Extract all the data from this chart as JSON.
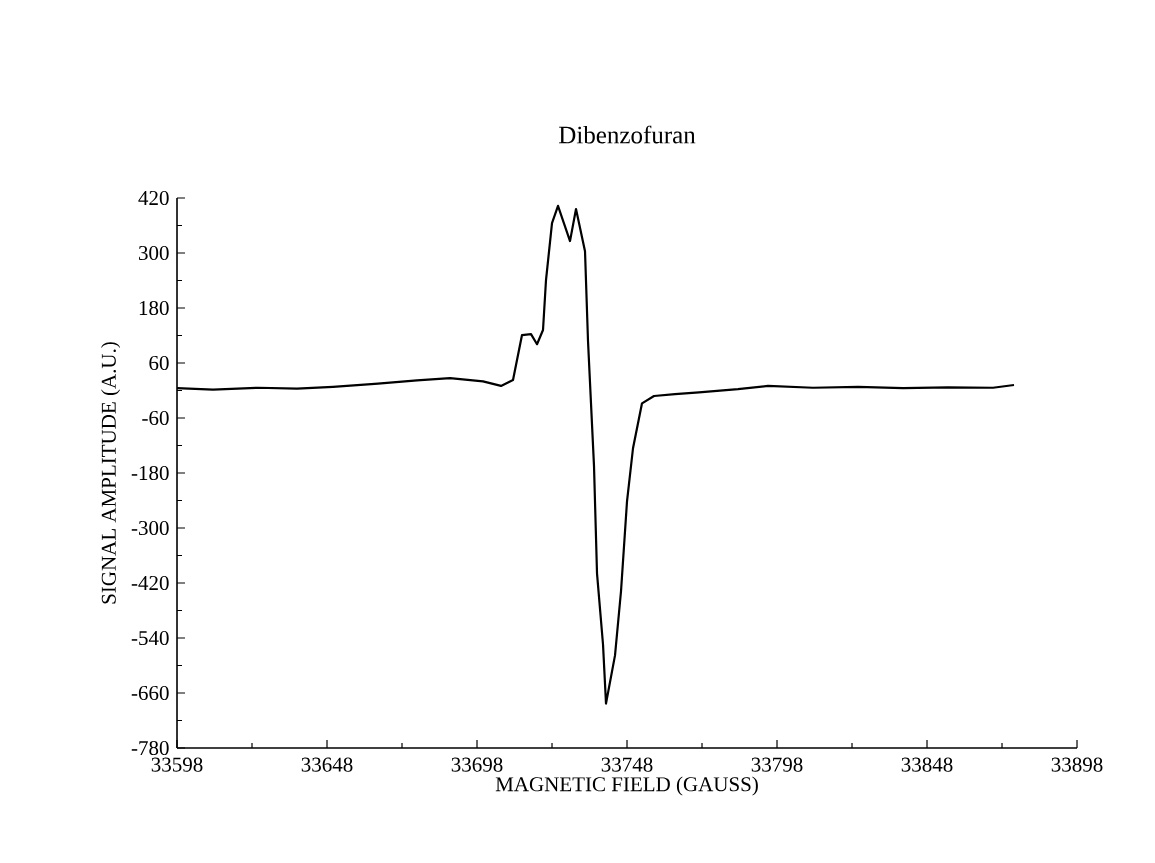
{
  "chart_data": {
    "type": "line",
    "title": "Dibenzofuran",
    "xlabel": "MAGNETIC FIELD (GAUSS)",
    "ylabel": "SIGNAL AMPLITUDE (A.U.)",
    "x": [
      33598,
      33610,
      33625,
      33638,
      33650,
      33665,
      33678,
      33689,
      33700,
      33706,
      33710,
      33713,
      33716,
      33718,
      33720,
      33721,
      33723,
      33725,
      33729,
      33731,
      33734,
      33735,
      33737,
      33738,
      33740,
      33741,
      33744,
      33746,
      33748,
      33750,
      33753,
      33757,
      33764,
      33772,
      33785,
      33795,
      33810,
      33825,
      33840,
      33855,
      33870,
      33877
    ],
    "series": [
      {
        "color": "#000000",
        "values": [
          5,
          2,
          6,
          4,
          8,
          15,
          22,
          27,
          20,
          10,
          23,
          121,
          123,
          101,
          132,
          241,
          365,
          403,
          326,
          396,
          304,
          108,
          -165,
          -399,
          -554,
          -683,
          -578,
          -438,
          -242,
          -126,
          -28,
          -12,
          -8,
          -4,
          3,
          10,
          6,
          8,
          5,
          7,
          6,
          12
        ]
      }
    ],
    "xlim": [
      33598,
      33898
    ],
    "xticks": [
      33598,
      33648,
      33698,
      33748,
      33798,
      33848,
      33898
    ],
    "ylim": [
      -780,
      420
    ],
    "yticks": [
      -780,
      -660,
      -540,
      -420,
      -300,
      -180,
      -60,
      60,
      180,
      300,
      420
    ]
  }
}
